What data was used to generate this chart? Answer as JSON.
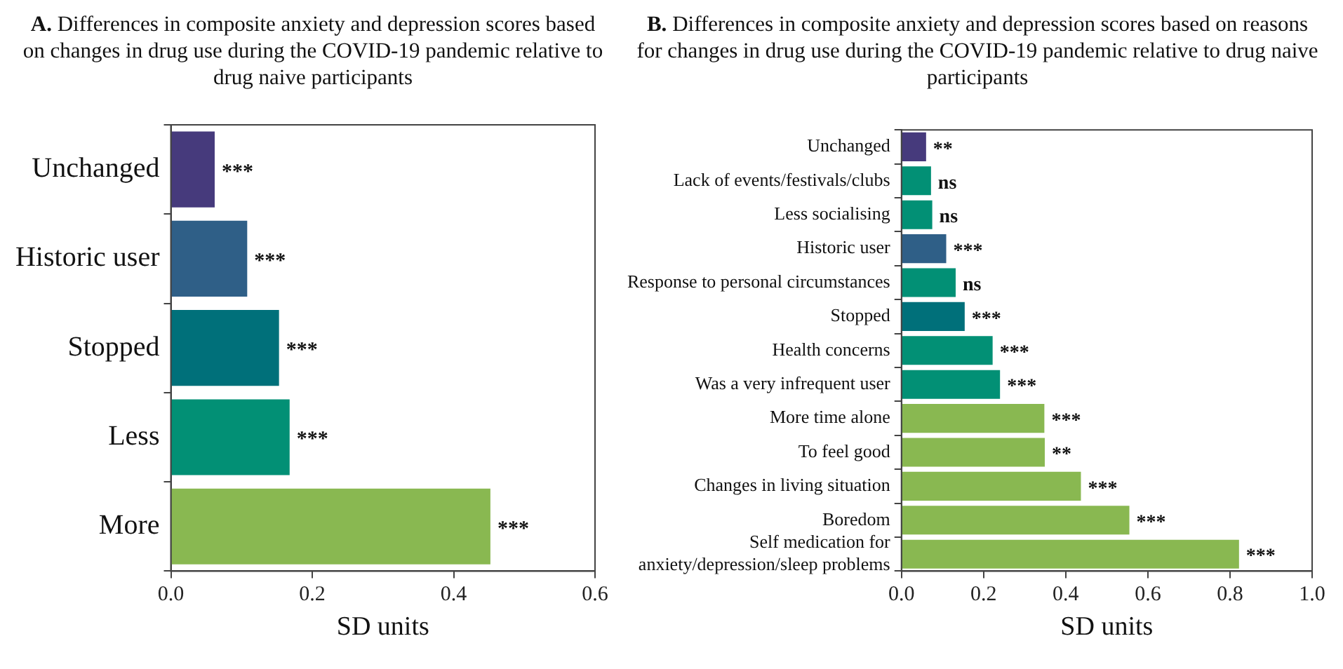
{
  "chart_data": [
    {
      "type": "bar",
      "orientation": "horizontal",
      "title": "A. Differences in composite anxiety and depression scores based on changes in drug use during the COVID-19 pandemic relative to drug naive participants",
      "xlabel": "SD units",
      "categories": [
        "Unchanged",
        "Historic user",
        "Stopped",
        "Less",
        "More"
      ],
      "values": [
        0.062,
        0.108,
        0.153,
        0.168,
        0.452
      ],
      "colors": [
        "#463a7c",
        "#2f5f87",
        "#00707a",
        "#029075",
        "#89b851"
      ],
      "value_labels": [
        "***",
        "***",
        "***",
        "***",
        "***"
      ],
      "xlim": [
        0,
        0.6
      ],
      "xticks": [
        {
          "value": 0,
          "label": "0.0"
        },
        {
          "value": 0.2,
          "label": "0.2"
        },
        {
          "value": 0.4,
          "label": "0.4"
        },
        {
          "value": 0.6,
          "label": "0.6"
        }
      ],
      "grid": false,
      "legend": false
    },
    {
      "type": "bar",
      "orientation": "horizontal",
      "title": "B. Differences in composite anxiety and depression scores based on reasons for changes in drug use during the COVID-19 pandemic relative to drug naive participants",
      "xlabel": "SD units",
      "categories": [
        "Unchanged",
        "Lack of events/festivals/clubs",
        "Less socialising",
        "Historic user",
        "Response to personal circumstances",
        "Stopped",
        "Health concerns",
        "Was a very infrequent user",
        "More time alone",
        "To feel good",
        "Changes in living situation",
        "Boredom",
        "Self medication for anxiety/depression/sleep problems"
      ],
      "values": [
        0.06,
        0.072,
        0.075,
        0.109,
        0.132,
        0.154,
        0.222,
        0.24,
        0.348,
        0.349,
        0.437,
        0.555,
        0.822
      ],
      "colors": [
        "#463a7c",
        "#029075",
        "#029075",
        "#2f5f87",
        "#029075",
        "#00707a",
        "#029075",
        "#029075",
        "#89b851",
        "#89b851",
        "#89b851",
        "#89b851",
        "#89b851"
      ],
      "value_labels": [
        "**",
        "ns",
        "ns",
        "***",
        "ns",
        "***",
        "***",
        "***",
        "***",
        "**",
        "***",
        "***",
        "***"
      ],
      "xlim": [
        0,
        1
      ],
      "xticks": [
        {
          "value": 0,
          "label": "0.0"
        },
        {
          "value": 0.2,
          "label": "0.2"
        },
        {
          "value": 0.4,
          "label": "0.4"
        },
        {
          "value": 0.6,
          "label": "0.6"
        },
        {
          "value": 0.8,
          "label": "0.8"
        },
        {
          "value": 1,
          "label": "1.0"
        }
      ],
      "grid": false,
      "legend": false
    }
  ]
}
